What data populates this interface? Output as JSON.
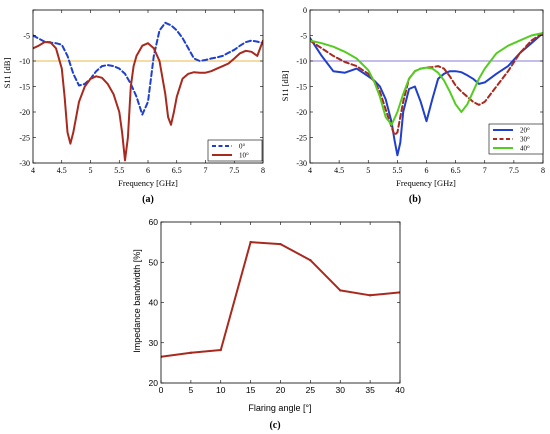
{
  "chart_data": [
    {
      "id": "a",
      "type": "line",
      "panel_label": "(a)",
      "xlabel": "Frequency [GHz]",
      "ylabel": "S11 [dB]",
      "xlim": [
        4,
        8
      ],
      "ylim": [
        -30,
        0
      ],
      "xticks": [
        4,
        4.5,
        5,
        5.5,
        6,
        6.5,
        7,
        7.5,
        8
      ],
      "yticks": [
        0,
        -5,
        -10,
        -15,
        -20,
        -25,
        -30
      ],
      "xtick_labels": [
        "4",
        "4.5",
        "5",
        "5.5",
        "6",
        "6.5",
        "7",
        "7.5",
        "8"
      ],
      "ytick_labels": [
        "",
        "-5",
        "-10",
        "-15",
        "-20",
        "-25",
        "-30"
      ],
      "reference_line": -10,
      "reference_color": "#e8b84a",
      "legend_position": "bottom-right",
      "series": [
        {
          "name": "0°",
          "color": "#1f3fcc",
          "dash": "dashed",
          "x": [
            4,
            4.1,
            4.2,
            4.3,
            4.4,
            4.5,
            4.6,
            4.7,
            4.8,
            4.9,
            5,
            5.1,
            5.2,
            5.3,
            5.4,
            5.5,
            5.6,
            5.7,
            5.8,
            5.9,
            6,
            6.1,
            6.2,
            6.3,
            6.4,
            6.5,
            6.6,
            6.7,
            6.8,
            6.9,
            7,
            7.1,
            7.2,
            7.3,
            7.4,
            7.5,
            7.6,
            7.7,
            7.8,
            7.9,
            8
          ],
          "y": [
            -5,
            -5.6,
            -6.2,
            -6.4,
            -6.5,
            -6.8,
            -9,
            -12.5,
            -14.8,
            -14.5,
            -13.5,
            -12,
            -11,
            -10.8,
            -11,
            -11.5,
            -12.5,
            -14.5,
            -17,
            -20.5,
            -18,
            -9,
            -4,
            -2.5,
            -3,
            -4,
            -5.5,
            -7.5,
            -9.5,
            -10,
            -9.8,
            -9.5,
            -9.3,
            -9,
            -8.4,
            -7.8,
            -7,
            -6.3,
            -6,
            -6.2,
            -6.5
          ]
        },
        {
          "name": "10°",
          "color": "#a82a1f",
          "dash": "solid",
          "x": [
            4,
            4.1,
            4.2,
            4.3,
            4.4,
            4.5,
            4.55,
            4.6,
            4.65,
            4.7,
            4.8,
            4.9,
            5,
            5.1,
            5.2,
            5.3,
            5.4,
            5.5,
            5.55,
            5.6,
            5.65,
            5.7,
            5.75,
            5.8,
            5.9,
            6,
            6.1,
            6.2,
            6.3,
            6.35,
            6.4,
            6.45,
            6.5,
            6.6,
            6.7,
            6.8,
            6.9,
            7,
            7.1,
            7.2,
            7.3,
            7.4,
            7.5,
            7.6,
            7.7,
            7.8,
            7.9,
            8
          ],
          "y": [
            -7.5,
            -7,
            -6.3,
            -6.3,
            -7.5,
            -11.5,
            -17,
            -24,
            -26.2,
            -24,
            -18,
            -15,
            -13.5,
            -13,
            -13.3,
            -14.5,
            -16.5,
            -20,
            -24,
            -29.5,
            -25,
            -15,
            -11,
            -9,
            -7,
            -6.5,
            -7.5,
            -10,
            -16.5,
            -21,
            -22.5,
            -20,
            -17,
            -13.5,
            -12.5,
            -12.2,
            -12.3,
            -12.3,
            -12,
            -11.5,
            -11,
            -10.5,
            -9.5,
            -8.5,
            -8,
            -8.2,
            -9,
            -6
          ]
        }
      ]
    },
    {
      "id": "b",
      "type": "line",
      "panel_label": "(b)",
      "xlabel": "Frequency [GHz]",
      "ylabel": "S11 [dB]",
      "xlim": [
        4,
        8
      ],
      "ylim": [
        -30,
        0
      ],
      "xticks": [
        4,
        4.5,
        5,
        5.5,
        6,
        6.5,
        7,
        7.5,
        8
      ],
      "yticks": [
        0,
        -5,
        -10,
        -15,
        -20,
        -25,
        -30
      ],
      "xtick_labels": [
        "4",
        "4.5",
        "5",
        "5.5",
        "6",
        "6.5",
        "7",
        "7.5",
        "8"
      ],
      "ytick_labels": [
        "0",
        "-5",
        "-10",
        "-15",
        "-20",
        "-25",
        "-30"
      ],
      "reference_line": -10,
      "reference_color": "#8a7ad6",
      "legend_position": "bottom-right",
      "series": [
        {
          "name": "20°",
          "color": "#1f3fcc",
          "dash": "solid",
          "x": [
            4,
            4.2,
            4.4,
            4.6,
            4.8,
            5,
            5.1,
            5.2,
            5.3,
            5.4,
            5.45,
            5.5,
            5.55,
            5.6,
            5.7,
            5.8,
            5.9,
            6,
            6.1,
            6.2,
            6.3,
            6.4,
            6.5,
            6.6,
            6.7,
            6.8,
            6.9,
            7,
            7.2,
            7.4,
            7.6,
            7.8,
            8
          ],
          "y": [
            -5.5,
            -9,
            -12,
            -12.3,
            -11.5,
            -13,
            -13.8,
            -15,
            -17.5,
            -22,
            -25.5,
            -28.5,
            -26,
            -20,
            -15.5,
            -15,
            -18,
            -21.8,
            -17.5,
            -13.5,
            -12.5,
            -12,
            -12,
            -12.2,
            -12.8,
            -13.5,
            -14.5,
            -14.2,
            -12.5,
            -11,
            -8.5,
            -6.5,
            -4.5
          ]
        },
        {
          "name": "30°",
          "color": "#a82a1f",
          "dash": "dashed",
          "x": [
            4,
            4.2,
            4.4,
            4.6,
            4.8,
            5,
            5.1,
            5.2,
            5.3,
            5.4,
            5.45,
            5.5,
            5.55,
            5.6,
            5.7,
            5.8,
            5.9,
            6,
            6.1,
            6.2,
            6.3,
            6.4,
            6.5,
            6.6,
            6.7,
            6.8,
            6.9,
            7,
            7.1,
            7.2,
            7.4,
            7.6,
            7.8,
            8
          ],
          "y": [
            -6,
            -7.5,
            -9,
            -10.2,
            -11,
            -12.5,
            -14,
            -16,
            -19.5,
            -23,
            -24.5,
            -24,
            -21,
            -18,
            -13.5,
            -12,
            -11.5,
            -11.3,
            -11.2,
            -11,
            -11.5,
            -13,
            -14.8,
            -16,
            -17,
            -18,
            -18.6,
            -18,
            -16.5,
            -15,
            -12,
            -8.5,
            -6,
            -4.5
          ]
        },
        {
          "name": "40°",
          "color": "#55cc22",
          "dash": "solid",
          "x": [
            4,
            4.2,
            4.4,
            4.6,
            4.8,
            5,
            5.1,
            5.2,
            5.3,
            5.4,
            5.5,
            5.6,
            5.7,
            5.8,
            5.9,
            6,
            6.1,
            6.2,
            6.3,
            6.4,
            6.5,
            6.6,
            6.7,
            6.8,
            6.9,
            7,
            7.2,
            7.4,
            7.6,
            7.8,
            8
          ],
          "y": [
            -6,
            -6.5,
            -7.2,
            -8.2,
            -9.5,
            -11.8,
            -14,
            -17,
            -21,
            -22.5,
            -20,
            -16.5,
            -13.5,
            -12,
            -11.5,
            -11.3,
            -11.5,
            -12.3,
            -13.8,
            -16,
            -18.5,
            -20,
            -18.5,
            -16,
            -13.5,
            -11.5,
            -8.5,
            -7,
            -6,
            -5,
            -4.5
          ]
        }
      ]
    },
    {
      "id": "c",
      "type": "line",
      "panel_label": "(c)",
      "xlabel": "Flaring angle [°]",
      "ylabel": "Impedance bandwidth [%]",
      "xlim": [
        0,
        40
      ],
      "ylim": [
        20,
        60
      ],
      "xticks": [
        0,
        5,
        10,
        15,
        20,
        25,
        30,
        35,
        40
      ],
      "yticks": [
        20,
        30,
        40,
        50,
        60
      ],
      "xtick_labels": [
        "0",
        "5",
        "10",
        "15",
        "20",
        "25",
        "30",
        "35",
        "40"
      ],
      "ytick_labels": [
        "20",
        "30",
        "40",
        "50",
        "60"
      ],
      "grid": false,
      "series": [
        {
          "color": "#a82a1f",
          "dash": "solid",
          "x": [
            0,
            5,
            10,
            15,
            20,
            25,
            30,
            35,
            40
          ],
          "y": [
            26.5,
            27.5,
            28.2,
            55,
            54.5,
            50.5,
            43,
            41.8,
            42.5
          ]
        }
      ]
    }
  ]
}
